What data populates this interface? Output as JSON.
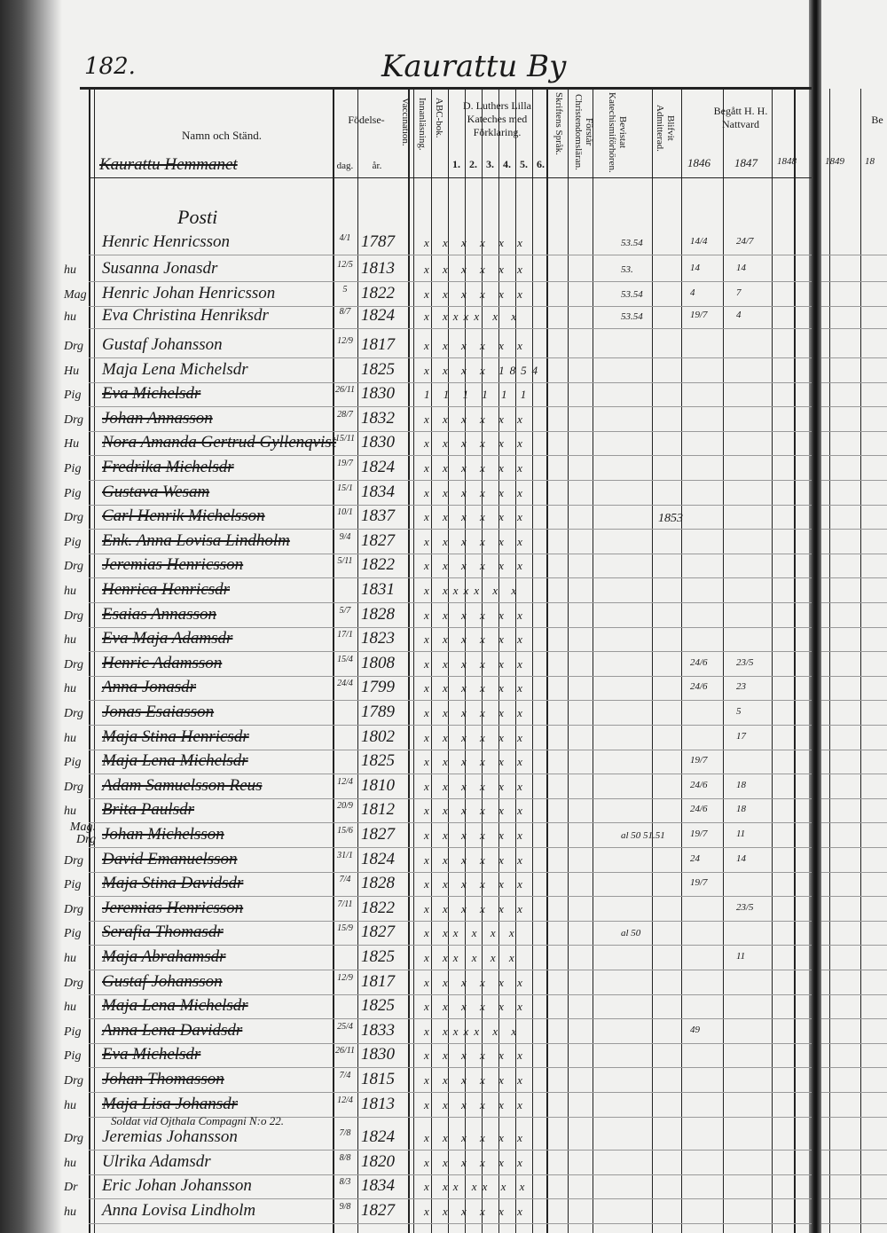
{
  "page": {
    "number": "182.",
    "title": "Kaurattu By",
    "estate": "Kaurattu Hemmanet",
    "section": "Posti"
  },
  "headers": {
    "name": "Namn och Ständ.",
    "birth": "Födelse-",
    "day": "dag.",
    "year": "år.",
    "vaccination": "Vaccination.",
    "reading": "Innanläsning.",
    "abc": "ABC-bok.",
    "catechism": "D. Luthers Lilla Kateches med Förklaring.",
    "catechism_parts": [
      "1.",
      "2.",
      "3.",
      "4.",
      "5.",
      "6."
    ],
    "scripture": "Skriftens Språk.",
    "understands": "Förstår Christendomsläran.",
    "examined": "Bevistat Katechismiförhören.",
    "admitted": "Blifvit Admitterad.",
    "communion": "Begått H. H. Nattvard",
    "communion_years": [
      "1846",
      "1847",
      "1848"
    ],
    "next_page_header": "Be",
    "next_page_years": [
      "1849",
      "18"
    ]
  },
  "rows": [
    {
      "prefix": "",
      "name": "Henric Henricsson",
      "day": "4/1",
      "year": "1787",
      "marks": "x x x x x x",
      "examined": "53.54",
      "c1": "14/4",
      "c2": "24/7"
    },
    {
      "prefix": "hu",
      "name": "Susanna Jonasdr",
      "day": "12/5",
      "year": "1813",
      "marks": "x x x x x x",
      "examined": "53.",
      "c1": "14",
      "c2": "14"
    },
    {
      "prefix": "Mag",
      "name": "Henric Johan Henricsson",
      "day": "5",
      "year": "1822",
      "marks": "x x x x x x",
      "examined": "53.54",
      "c1": "4",
      "c2": "7"
    },
    {
      "prefix": "hu",
      "name": "Eva Christina Henriksdr",
      "day": "8/7",
      "year": "1824",
      "marks": "x xxxx x x",
      "examined": "53.54",
      "c1": "19/7",
      "c2": "4"
    },
    {
      "prefix": "Drg",
      "name": "Gustaf Johansson",
      "day": "12/9",
      "year": "1817",
      "marks": "x x x x x x"
    },
    {
      "prefix": "Hu",
      "name": "Maja Lena Michelsdr",
      "day": "",
      "year": "1825",
      "marks": "x x x x 1854"
    },
    {
      "prefix": "Pig",
      "name": "Eva Michelsdr",
      "day": "26/11",
      "year": "1830",
      "marks": "1 1 1 1 1 1",
      "struck": true
    },
    {
      "prefix": "Drg",
      "name": "Johan Annasson",
      "day": "28/7",
      "year": "1832",
      "marks": "x x x x x x",
      "struck": true
    },
    {
      "prefix": "Hu",
      "name": "Nora Amanda Gertrud Gyllenqvist",
      "day": "15/11",
      "year": "1830",
      "marks": "x x x x x x",
      "struck": true
    },
    {
      "prefix": "Pig",
      "name": "Fredrika Michelsdr",
      "day": "19/7",
      "year": "1824",
      "marks": "x x x x x x",
      "struck": true
    },
    {
      "prefix": "Pig",
      "name": "Gustava Wesam",
      "day": "15/1",
      "year": "1834",
      "marks": "x x x x x x",
      "struck": true
    },
    {
      "prefix": "Drg",
      "name": "Carl Henrik Michelsson",
      "day": "10/1",
      "year": "1837",
      "marks": "x x x x x x",
      "struck": true,
      "admitted": "1853"
    },
    {
      "prefix": "Pig",
      "name": "Enk. Anna Lovisa Lindholm",
      "day": "9/4",
      "year": "1827",
      "marks": "x x x x x x",
      "struck": true
    },
    {
      "prefix": "Drg",
      "name": "Jeremias Henricsson",
      "day": "5/11",
      "year": "1822",
      "marks": "x x x x x x",
      "struck": true
    },
    {
      "prefix": "hu",
      "name": "Henrica Henricsdr",
      "day": "",
      "year": "1831",
      "marks": "x xxxx x x",
      "struck": true
    },
    {
      "prefix": "Drg",
      "name": "Esaias Annasson",
      "day": "5/7",
      "year": "1828",
      "marks": "x x x x x x",
      "struck": true
    },
    {
      "prefix": "hu",
      "name": "Eva Maja Adamsdr",
      "day": "17/1",
      "year": "1823",
      "marks": "x x x x x x",
      "struck": true
    },
    {
      "prefix": "Drg",
      "name": "Henric Adamsson",
      "day": "15/4",
      "year": "1808",
      "marks": "x x x x x x",
      "struck": true,
      "c1": "24/6",
      "c2": "23/5"
    },
    {
      "prefix": "hu",
      "name": "Anna Jonasdr",
      "day": "24/4",
      "year": "1799",
      "marks": "x x x x x x",
      "struck": true,
      "c1": "24/6",
      "c2": "23"
    },
    {
      "prefix": "Drg",
      "name": "Jonas Esaiasson",
      "day": "",
      "year": "1789",
      "marks": "x x x x x x",
      "struck": true,
      "c2": "5"
    },
    {
      "prefix": "hu",
      "name": "Maja Stina Henricsdr",
      "day": "",
      "year": "1802",
      "marks": "x x x x x x",
      "struck": true,
      "c2": "17"
    },
    {
      "prefix": "Pig",
      "name": "Maja Lena Michelsdr",
      "day": "",
      "year": "1825",
      "marks": "x x x x x x",
      "struck": true,
      "c1": "19/7"
    },
    {
      "prefix": "Drg",
      "name": "Adam Samuelsson Reus",
      "day": "12/4",
      "year": "1810",
      "marks": "x x x x x x",
      "struck": true,
      "c1": "24/6",
      "c2": "18"
    },
    {
      "prefix": "hu",
      "name": "Brita Paulsdr",
      "day": "20/9",
      "year": "1812",
      "marks": "x x x x x x",
      "struck": true,
      "c1": "24/6",
      "c2": "18"
    },
    {
      "prefix": "Mag. Drg",
      "name": "Johan Michelsson",
      "day": "15/6",
      "year": "1827",
      "marks": "x x x x x x",
      "struck": true,
      "examined": "al 50 51.51",
      "c1": "19/7",
      "c2": "11"
    },
    {
      "prefix": "Drg",
      "name": "David Emanuelsson",
      "day": "31/1",
      "year": "1824",
      "marks": "x x x x x x",
      "struck": true,
      "c1": "24",
      "c2": "14"
    },
    {
      "prefix": "Pig",
      "name": "Maja Stina Davidsdr",
      "day": "7/4",
      "year": "1828",
      "marks": "x x x x x x",
      "struck": true,
      "c1": "19/7"
    },
    {
      "prefix": "Drg",
      "name": "Jeremias Henricsson",
      "day": "7/11",
      "year": "1822",
      "marks": "x x x x x x",
      "struck": true,
      "c2": "23/5"
    },
    {
      "prefix": "Pig",
      "name": "Serafia Thomasdr",
      "day": "15/9",
      "year": "1827",
      "marks": "x xx x x x",
      "struck": true,
      "examined": "al 50"
    },
    {
      "prefix": "hu",
      "name": "Maja Abrahamsdr",
      "day": "",
      "year": "1825",
      "marks": "x xx x x x",
      "struck": true,
      "c2": "11"
    },
    {
      "prefix": "Drg",
      "name": "Gustaf Johansson",
      "day": "12/9",
      "year": "1817",
      "marks": "x x x x x x",
      "struck": true
    },
    {
      "prefix": "hu",
      "name": "Maja Lena Michelsdr",
      "day": "",
      "year": "1825",
      "marks": "x x x x x x",
      "struck": true
    },
    {
      "prefix": "Pig",
      "name": "Anna Lena Davidsdr",
      "day": "25/4",
      "year": "1833",
      "marks": "x xxxx x x",
      "struck": true,
      "c1": "49"
    },
    {
      "prefix": "Pig",
      "name": "Eva Michelsdr",
      "day": "26/11",
      "year": "1830",
      "marks": "x x x x x x",
      "struck": true
    },
    {
      "prefix": "Drg",
      "name": "Johan Thomasson",
      "day": "7/4",
      "year": "1815",
      "marks": "x x x x x x",
      "struck": true
    },
    {
      "prefix": "hu",
      "name": "Maja Lisa Johansdr",
      "day": "12/4",
      "year": "1813",
      "marks": "x x x x x x",
      "struck": true,
      "note": "Soldat vid Ojthala Compagni N:o 22."
    },
    {
      "prefix": "Drg",
      "name": "Jeremias Johansson",
      "day": "7/8",
      "year": "1824",
      "marks": "x x x x x x"
    },
    {
      "prefix": "hu",
      "name": "Ulrika Adamsdr",
      "day": "8/8",
      "year": "1820",
      "marks": "x x x x x x"
    },
    {
      "prefix": "Dr",
      "name": "Eric Johan Johansson",
      "day": "8/3",
      "year": "1834",
      "marks": "x xx xx x x"
    },
    {
      "prefix": "hu",
      "name": "Anna Lovisa Lindholm",
      "day": "9/8",
      "year": "1827",
      "marks": "x x x x x x"
    }
  ]
}
